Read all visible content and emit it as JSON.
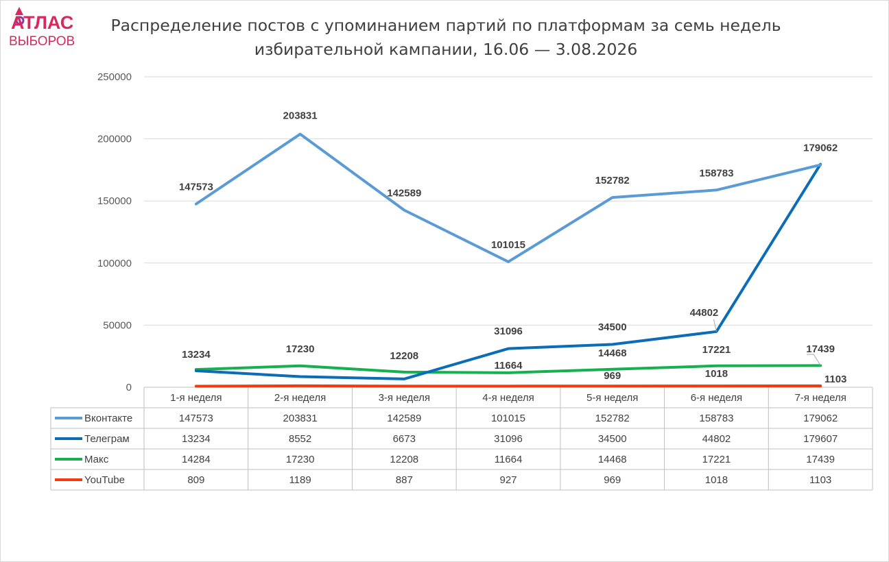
{
  "logo": {
    "line1": "АТЛАС",
    "line2": "ВЫБОРОВ"
  },
  "title_line1": "Распределение постов с упоминанием партий по платформам за семь недель",
  "title_line2": "избирательной кампании, 16.06 — 3.08.2026",
  "colors": {
    "Вконтакте": "#5b9bd5",
    "Телеграм": "#0b6cb8",
    "Макс": "#16b04f",
    "YouTube": "#f23a12"
  },
  "chart_data": {
    "type": "line",
    "title": "Распределение постов с упоминанием партий по платформам за семь недель избирательной кампании, 16.06 — 3.08.2026",
    "categories": [
      "1-я неделя",
      "2-я неделя",
      "3-я неделя",
      "4-я неделя",
      "5-я неделя",
      "6-я неделя",
      "7-я неделя"
    ],
    "ylim": [
      0,
      250000
    ],
    "yticks": [
      "0",
      "50000",
      "100000",
      "150000",
      "200000",
      "250000"
    ],
    "grid": true,
    "legend": "data-table",
    "series": [
      {
        "name": "Вконтакте",
        "values": [
          147573,
          203831,
          142589,
          101015,
          152782,
          158783,
          179062
        ]
      },
      {
        "name": "Телеграм",
        "values": [
          13234,
          8552,
          6673,
          31096,
          34500,
          44802,
          179607
        ]
      },
      {
        "name": "Макс",
        "values": [
          14284,
          17230,
          12208,
          11664,
          14468,
          17221,
          17439
        ]
      },
      {
        "name": "YouTube",
        "values": [
          809,
          1189,
          887,
          927,
          969,
          1018,
          1103
        ]
      }
    ],
    "data_labels": [
      {
        "series": "Вконтакте",
        "index": 0,
        "text": "147573"
      },
      {
        "series": "Вконтакте",
        "index": 1,
        "text": "203831"
      },
      {
        "series": "Вконтакте",
        "index": 2,
        "text": "142589"
      },
      {
        "series": "Вконтакте",
        "index": 3,
        "text": "101015"
      },
      {
        "series": "Вконтакте",
        "index": 4,
        "text": "152782"
      },
      {
        "series": "Вконтакте",
        "index": 5,
        "text": "158783"
      },
      {
        "series": "Вконтакте",
        "index": 6,
        "text": "179062"
      },
      {
        "series": "Телеграм",
        "index": 0,
        "text": "13234"
      },
      {
        "series": "Телеграм",
        "index": 3,
        "text": "31096"
      },
      {
        "series": "Телеграм",
        "index": 4,
        "text": "34500"
      },
      {
        "series": "Телеграм",
        "index": 5,
        "text": "44802"
      },
      {
        "series": "Макс",
        "index": 1,
        "text": "17230"
      },
      {
        "series": "Макс",
        "index": 2,
        "text": "12208"
      },
      {
        "series": "Макс",
        "index": 3,
        "text": "11664"
      },
      {
        "series": "Макс",
        "index": 4,
        "text": "14468"
      },
      {
        "series": "Макс",
        "index": 5,
        "text": "17221"
      },
      {
        "series": "Макс",
        "index": 6,
        "text": "17439"
      },
      {
        "series": "YouTube",
        "index": 4,
        "text": "969"
      },
      {
        "series": "YouTube",
        "index": 5,
        "text": "1018"
      },
      {
        "series": "YouTube",
        "index": 6,
        "text": "1103"
      }
    ]
  }
}
